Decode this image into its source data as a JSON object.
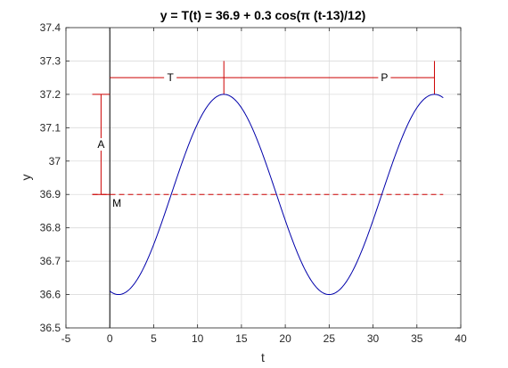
{
  "chart_data": {
    "type": "line",
    "title": "y = T(t) = 36.9 + 0.3 cos(π (t-13)/12)",
    "xlabel": "t",
    "ylabel": "y",
    "xlim": [
      -5,
      40
    ],
    "ylim": [
      36.5,
      37.4
    ],
    "xticks": [
      -5,
      0,
      5,
      10,
      15,
      20,
      25,
      30,
      35,
      40
    ],
    "yticks": [
      36.5,
      36.6,
      36.7,
      36.8,
      36.9,
      37,
      37.1,
      37.2,
      37.3,
      37.4
    ],
    "grid": true,
    "function": {
      "mean": 36.9,
      "amplitude": 0.3,
      "phase": 13,
      "period": 24,
      "t_start": 0,
      "t_end": 38
    },
    "series": [
      {
        "x": [
          0,
          1,
          3,
          5,
          7,
          9,
          11,
          13,
          15,
          17,
          19,
          21,
          23,
          25,
          27,
          29,
          31,
          33,
          35,
          37,
          38
        ],
        "y": [
          36.6,
          36.6,
          36.64,
          36.75,
          36.9,
          37.05,
          37.16,
          37.2,
          37.16,
          37.05,
          36.9,
          36.75,
          36.64,
          36.6,
          36.64,
          36.75,
          36.9,
          37.05,
          37.16,
          37.2,
          37.19
        ],
        "color": "#0000aa"
      }
    ],
    "annotations": {
      "mean_line": {
        "y": 36.9,
        "color": "#cc0000"
      },
      "M_label": "M",
      "A_label": "A",
      "T_label": "T",
      "P_label": "P",
      "bracket_y": 37.25,
      "A_bracket_x": -1,
      "T_marker_x": 13,
      "P_marker_x": 37,
      "color": "#cc0000"
    },
    "vertical_line_x": 0
  }
}
